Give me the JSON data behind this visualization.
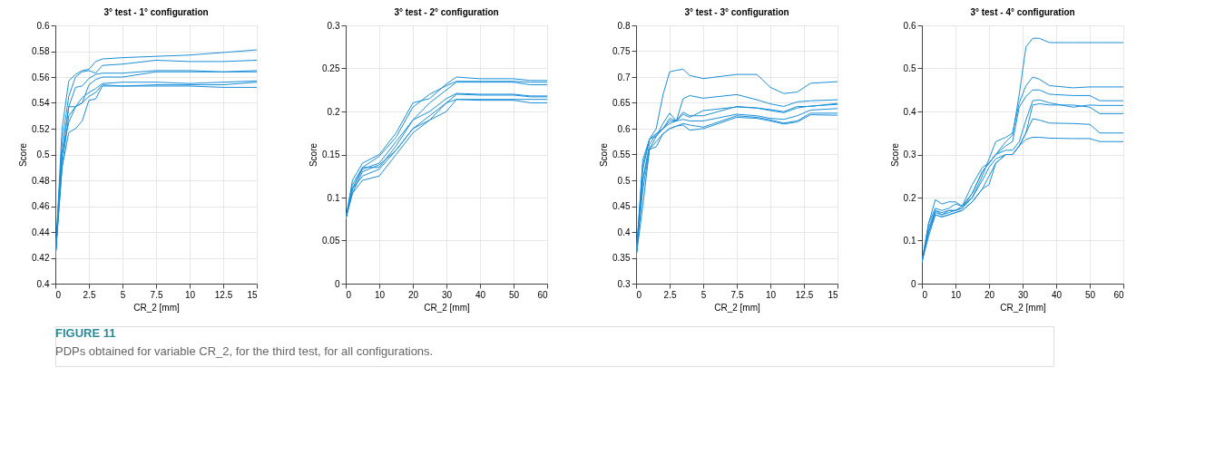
{
  "chart_data": [
    {
      "type": "line",
      "title": "3° test - 1° configuration",
      "xlabel": "CR_2 [mm]",
      "ylabel": "Score",
      "grid": true,
      "legend": false,
      "annotations": [
        "FIGURE 11",
        "PDPs obtained for variable CR_2, for the third test, for all configurations."
      ],
      "xlim": [
        0,
        15
      ],
      "xticks": [
        0,
        2.5,
        5,
        7.5,
        10,
        12.5,
        15
      ],
      "ylim": [
        0.4,
        0.6
      ],
      "yticks": [
        0.4,
        0.42,
        0.44,
        0.46,
        0.48,
        0.5,
        0.52,
        0.54,
        0.56,
        0.58,
        0.6
      ],
      "x": [
        0,
        0.5,
        1,
        1.5,
        2,
        2.5,
        3,
        3.5,
        5,
        7.5,
        10,
        12.5,
        15
      ],
      "series": [
        {
          "color": "#1b8fd8",
          "values": [
            0.42,
            0.52,
            0.557,
            0.562,
            0.565,
            0.566,
            0.572,
            0.574,
            0.575,
            0.576,
            0.577,
            0.579,
            0.581
          ]
        },
        {
          "color": "#1b8fd8",
          "values": [
            0.42,
            0.51,
            0.545,
            0.56,
            0.564,
            0.565,
            0.563,
            0.569,
            0.57,
            0.573,
            0.572,
            0.572,
            0.573
          ]
        },
        {
          "color": "#1b8fd8",
          "values": [
            0.42,
            0.5,
            0.537,
            0.552,
            0.553,
            0.559,
            0.562,
            0.563,
            0.563,
            0.565,
            0.565,
            0.564,
            0.565
          ]
        },
        {
          "color": "#1b8fd8",
          "values": [
            0.42,
            0.5,
            0.537,
            0.537,
            0.54,
            0.554,
            0.558,
            0.56,
            0.56,
            0.564,
            0.564,
            0.564,
            0.564
          ]
        },
        {
          "color": "#1b8fd8",
          "values": [
            0.42,
            0.5,
            0.525,
            0.537,
            0.544,
            0.548,
            0.551,
            0.555,
            0.556,
            0.556,
            0.555,
            0.556,
            0.557
          ]
        },
        {
          "color": "#1b8fd8",
          "values": [
            0.42,
            0.49,
            0.517,
            0.52,
            0.526,
            0.542,
            0.543,
            0.553,
            0.553,
            0.554,
            0.554,
            0.554,
            0.556
          ]
        },
        {
          "color": "#1b8fd8",
          "values": [
            0.42,
            0.49,
            0.53,
            0.537,
            0.54,
            0.545,
            0.548,
            0.554,
            0.553,
            0.553,
            0.553,
            0.552,
            0.552
          ]
        }
      ]
    },
    {
      "type": "line",
      "title": "3° test - 2° configuration",
      "xlabel": "CR_2 [mm]",
      "ylabel": "Score",
      "grid": true,
      "legend": false,
      "xlim": [
        0,
        60
      ],
      "xticks": [
        0,
        10,
        20,
        30,
        40,
        50,
        60
      ],
      "ylim": [
        0,
        0.3
      ],
      "yticks": [
        0,
        0.05,
        0.1,
        0.15,
        0.2,
        0.25,
        0.3
      ],
      "x": [
        0,
        2,
        5,
        10,
        15,
        20,
        25,
        30,
        33,
        40,
        50,
        55,
        60
      ],
      "series": [
        {
          "color": "#1b8fd8",
          "values": [
            0.075,
            0.12,
            0.14,
            0.15,
            0.175,
            0.21,
            0.215,
            0.232,
            0.24,
            0.238,
            0.238,
            0.236,
            0.236
          ]
        },
        {
          "color": "#1b8fd8",
          "values": [
            0.075,
            0.115,
            0.135,
            0.148,
            0.17,
            0.205,
            0.22,
            0.23,
            0.235,
            0.235,
            0.235,
            0.234,
            0.234
          ]
        },
        {
          "color": "#1b8fd8",
          "values": [
            0.075,
            0.11,
            0.133,
            0.14,
            0.165,
            0.19,
            0.21,
            0.225,
            0.234,
            0.234,
            0.234,
            0.231,
            0.231
          ]
        },
        {
          "color": "#1b8fd8",
          "values": [
            0.075,
            0.11,
            0.135,
            0.135,
            0.16,
            0.19,
            0.2,
            0.215,
            0.221,
            0.22,
            0.22,
            0.218,
            0.218
          ]
        },
        {
          "color": "#1b8fd8",
          "values": [
            0.075,
            0.11,
            0.125,
            0.133,
            0.155,
            0.18,
            0.19,
            0.21,
            0.22,
            0.219,
            0.219,
            0.217,
            0.217
          ]
        },
        {
          "color": "#1b8fd8",
          "values": [
            0.075,
            0.105,
            0.12,
            0.125,
            0.15,
            0.175,
            0.19,
            0.2,
            0.214,
            0.214,
            0.214,
            0.214,
            0.214
          ]
        },
        {
          "color": "#1b8fd8",
          "values": [
            0.075,
            0.105,
            0.13,
            0.138,
            0.155,
            0.18,
            0.195,
            0.21,
            0.214,
            0.213,
            0.213,
            0.21,
            0.21
          ]
        }
      ]
    },
    {
      "type": "line",
      "title": "3° test - 3° configuration",
      "xlabel": "CR_2 [mm]",
      "ylabel": "Score",
      "grid": true,
      "legend": false,
      "xlim": [
        0,
        15
      ],
      "xticks": [
        0,
        2.5,
        5,
        7.5,
        10,
        12.5,
        15
      ],
      "ylim": [
        0.3,
        0.8
      ],
      "yticks": [
        0.3,
        0.35,
        0.4,
        0.45,
        0.5,
        0.55,
        0.6,
        0.65,
        0.7,
        0.75,
        0.8
      ],
      "x": [
        0,
        0.5,
        1,
        1.5,
        2,
        2.5,
        3,
        3.5,
        4,
        5,
        7.5,
        9,
        10,
        11,
        12,
        13,
        15
      ],
      "series": [
        {
          "color": "#1b8fd8",
          "values": [
            0.35,
            0.54,
            0.58,
            0.6,
            0.665,
            0.71,
            0.713,
            0.715,
            0.703,
            0.697,
            0.705,
            0.705,
            0.68,
            0.668,
            0.671,
            0.688,
            0.691
          ]
        },
        {
          "color": "#1b8fd8",
          "values": [
            0.35,
            0.53,
            0.58,
            0.59,
            0.6,
            0.61,
            0.615,
            0.658,
            0.664,
            0.659,
            0.666,
            0.656,
            0.648,
            0.643,
            0.652,
            0.654,
            0.656
          ]
        },
        {
          "color": "#1b8fd8",
          "values": [
            0.35,
            0.52,
            0.58,
            0.585,
            0.61,
            0.63,
            0.615,
            0.632,
            0.625,
            0.625,
            0.643,
            0.64,
            0.637,
            0.633,
            0.643,
            0.643,
            0.649
          ]
        },
        {
          "color": "#1b8fd8",
          "values": [
            0.35,
            0.5,
            0.56,
            0.585,
            0.6,
            0.615,
            0.615,
            0.628,
            0.622,
            0.635,
            0.642,
            0.64,
            0.635,
            0.631,
            0.64,
            0.644,
            0.647
          ]
        },
        {
          "color": "#1b8fd8",
          "values": [
            0.35,
            0.5,
            0.57,
            0.59,
            0.6,
            0.62,
            0.615,
            0.618,
            0.615,
            0.615,
            0.628,
            0.625,
            0.62,
            0.618,
            0.625,
            0.636,
            0.639
          ]
        },
        {
          "color": "#1b8fd8",
          "values": [
            0.35,
            0.45,
            0.56,
            0.565,
            0.59,
            0.6,
            0.605,
            0.61,
            0.607,
            0.603,
            0.625,
            0.622,
            0.617,
            0.611,
            0.615,
            0.63,
            0.63
          ]
        },
        {
          "color": "#1b8fd8",
          "values": [
            0.35,
            0.48,
            0.56,
            0.575,
            0.59,
            0.6,
            0.605,
            0.607,
            0.597,
            0.6,
            0.622,
            0.62,
            0.615,
            0.609,
            0.613,
            0.627,
            0.626
          ]
        }
      ]
    },
    {
      "type": "line",
      "title": "3° test - 4° configuration",
      "xlabel": "CR_2 [mm]",
      "ylabel": "Score",
      "grid": true,
      "legend": false,
      "xlim": [
        0,
        60
      ],
      "xticks": [
        0,
        10,
        20,
        30,
        40,
        50,
        60
      ],
      "ylim": [
        0,
        0.6
      ],
      "yticks": [
        0,
        0.1,
        0.2,
        0.3,
        0.4,
        0.5,
        0.6
      ],
      "x": [
        0,
        2,
        4,
        6,
        8,
        10,
        12,
        15,
        18,
        20,
        22,
        25,
        27,
        29,
        31,
        33,
        35,
        38,
        45,
        50,
        53,
        60
      ],
      "series": [
        {
          "color": "#1b8fd8",
          "values": [
            0.05,
            0.14,
            0.195,
            0.185,
            0.19,
            0.19,
            0.18,
            0.23,
            0.27,
            0.28,
            0.3,
            0.33,
            0.345,
            0.44,
            0.55,
            0.57,
            0.57,
            0.56,
            0.56,
            0.56,
            0.56,
            0.56
          ]
        },
        {
          "color": "#1b8fd8",
          "values": [
            0.05,
            0.14,
            0.175,
            0.17,
            0.175,
            0.185,
            0.18,
            0.2,
            0.25,
            0.29,
            0.33,
            0.34,
            0.35,
            0.42,
            0.46,
            0.48,
            0.475,
            0.46,
            0.455,
            0.457,
            0.457,
            0.457
          ]
        },
        {
          "color": "#1b8fd8",
          "values": [
            0.05,
            0.13,
            0.17,
            0.165,
            0.17,
            0.17,
            0.18,
            0.21,
            0.26,
            0.28,
            0.3,
            0.32,
            0.33,
            0.41,
            0.435,
            0.45,
            0.45,
            0.44,
            0.437,
            0.437,
            0.425,
            0.425
          ]
        },
        {
          "color": "#1b8fd8",
          "values": [
            0.05,
            0.12,
            0.17,
            0.16,
            0.17,
            0.17,
            0.175,
            0.21,
            0.26,
            0.28,
            0.3,
            0.31,
            0.31,
            0.33,
            0.38,
            0.425,
            0.427,
            0.42,
            0.41,
            0.415,
            0.414,
            0.414
          ]
        },
        {
          "color": "#1b8fd8",
          "values": [
            0.05,
            0.12,
            0.165,
            0.16,
            0.165,
            0.17,
            0.175,
            0.2,
            0.24,
            0.27,
            0.29,
            0.3,
            0.3,
            0.32,
            0.35,
            0.415,
            0.418,
            0.415,
            0.415,
            0.41,
            0.395,
            0.395
          ]
        },
        {
          "color": "#1b8fd8",
          "values": [
            0.05,
            0.12,
            0.16,
            0.155,
            0.16,
            0.165,
            0.17,
            0.19,
            0.22,
            0.25,
            0.28,
            0.3,
            0.3,
            0.32,
            0.35,
            0.383,
            0.38,
            0.373,
            0.372,
            0.37,
            0.35,
            0.35
          ]
        },
        {
          "color": "#1b8fd8",
          "values": [
            0.05,
            0.11,
            0.16,
            0.155,
            0.16,
            0.165,
            0.17,
            0.19,
            0.22,
            0.23,
            0.28,
            0.3,
            0.3,
            0.32,
            0.335,
            0.34,
            0.34,
            0.338,
            0.337,
            0.337,
            0.33,
            0.33
          ]
        }
      ]
    }
  ]
}
